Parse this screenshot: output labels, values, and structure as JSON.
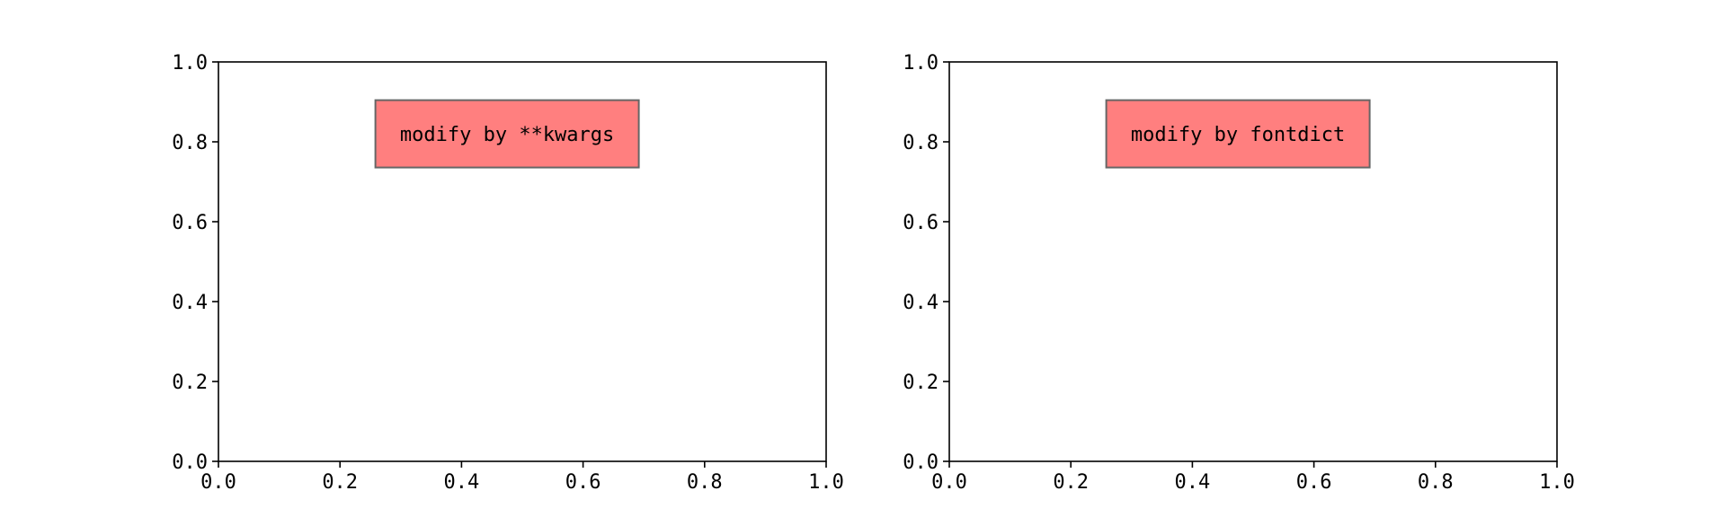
{
  "chart_data": [
    {
      "type": "scatter",
      "title": "",
      "xlabel": "",
      "ylabel": "",
      "xlim": [
        0,
        1
      ],
      "ylim": [
        0,
        1
      ],
      "x_ticks": [
        0.0,
        0.2,
        0.4,
        0.6,
        0.8,
        1.0
      ],
      "x_tick_labels": [
        "0.0",
        "0.2",
        "0.4",
        "0.6",
        "0.8",
        "1.0"
      ],
      "y_ticks": [
        0.0,
        0.2,
        0.4,
        0.6,
        0.8,
        1.0
      ],
      "y_tick_labels": [
        "0.0",
        "0.2",
        "0.4",
        "0.6",
        "0.8",
        "1.0"
      ],
      "grid": false,
      "series": [],
      "annotations": [
        {
          "text": "modify by **kwargs",
          "x": 0.475,
          "y": 0.82,
          "box_color": "#ff7f7f",
          "edge_color": "#666666"
        }
      ]
    },
    {
      "type": "scatter",
      "title": "",
      "xlabel": "",
      "ylabel": "",
      "xlim": [
        0,
        1
      ],
      "ylim": [
        0,
        1
      ],
      "x_ticks": [
        0.0,
        0.2,
        0.4,
        0.6,
        0.8,
        1.0
      ],
      "x_tick_labels": [
        "0.0",
        "0.2",
        "0.4",
        "0.6",
        "0.8",
        "1.0"
      ],
      "y_ticks": [
        0.0,
        0.2,
        0.4,
        0.6,
        0.8,
        1.0
      ],
      "y_tick_labels": [
        "0.0",
        "0.2",
        "0.4",
        "0.6",
        "0.8",
        "1.0"
      ],
      "grid": false,
      "series": [],
      "annotations": [
        {
          "text": "modify by fontdict",
          "x": 0.475,
          "y": 0.82,
          "box_color": "#ff7f7f",
          "edge_color": "#666666"
        }
      ]
    }
  ]
}
